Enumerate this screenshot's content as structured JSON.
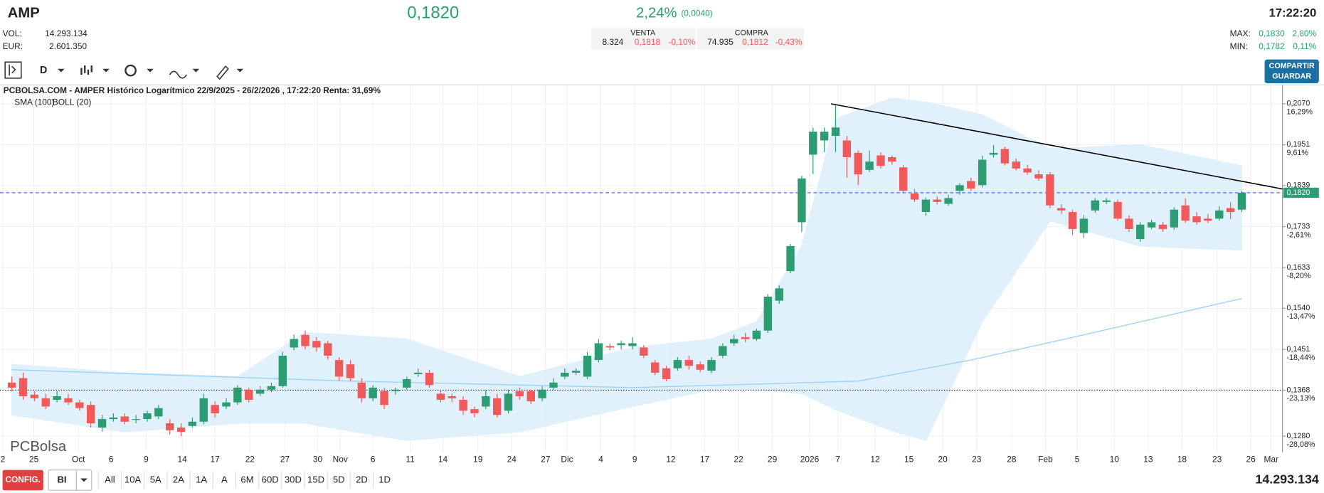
{
  "header": {
    "ticker": "AMP",
    "vol_label": "VOL:",
    "vol": "14.293.134",
    "eur_label": "EUR:",
    "eur": "2.601.350",
    "price": "0,1820",
    "change_pct": "2,24%",
    "change_abs": "(0,0040)",
    "sell_label": "VENTA",
    "sell_qty": "8.324",
    "sell_price": "0,1818",
    "sell_pct": "-0,10%",
    "buy_label": "COMPRA",
    "buy_qty": "74.935",
    "buy_price": "0,1812",
    "buy_pct": "-0,43%",
    "time": "17:22:20",
    "max_label": "MAX:",
    "max": "0,1830",
    "max_pct": "2,80%",
    "min_label": "MIN:",
    "min": "0,1782",
    "min_pct": "0,11%"
  },
  "toolbar": {
    "period": "D",
    "share": "COMPARTIR",
    "save": "GUARDAR"
  },
  "chart_data": {
    "type": "candlestick",
    "title": "PCBOLSA.COM - AMPER Histórico Logarítmico 22/9/2025 - 26/2/2026 , 17:22:20 Renta: 31,69%",
    "watermark": "PCBolsa",
    "log_scale": true,
    "grid": true,
    "up_color": "#2e9c72",
    "down_color": "#f05a5a",
    "xlim": [
      -1.05,
      112.6
    ],
    "ylim": [
      0.1263,
      0.2096
    ],
    "xticks": [
      {
        "value": -0.8,
        "label": "2"
      },
      {
        "value": 1.95,
        "label": "25"
      },
      {
        "value": 5.9,
        "label": "Oct"
      },
      {
        "value": 8.8,
        "label": "6"
      },
      {
        "value": 11.9,
        "label": "9"
      },
      {
        "value": 15.1,
        "label": "14"
      },
      {
        "value": 18.0,
        "label": "17"
      },
      {
        "value": 21.1,
        "label": "22"
      },
      {
        "value": 24.2,
        "label": "27"
      },
      {
        "value": 27.1,
        "label": "30"
      },
      {
        "value": 29.1,
        "label": "Nov"
      },
      {
        "value": 32.0,
        "label": "6"
      },
      {
        "value": 35.3,
        "label": "11"
      },
      {
        "value": 38.2,
        "label": "14"
      },
      {
        "value": 41.3,
        "label": "19"
      },
      {
        "value": 44.3,
        "label": "24"
      },
      {
        "value": 47.3,
        "label": "27"
      },
      {
        "value": 49.2,
        "label": "Dic"
      },
      {
        "value": 52.2,
        "label": "4"
      },
      {
        "value": 55.2,
        "label": "9"
      },
      {
        "value": 58.4,
        "label": "12"
      },
      {
        "value": 61.4,
        "label": "17"
      },
      {
        "value": 64.4,
        "label": "22"
      },
      {
        "value": 67.4,
        "label": "29"
      },
      {
        "value": 70.7,
        "label": "2026"
      },
      {
        "value": 73.2,
        "label": "7"
      },
      {
        "value": 76.5,
        "label": "12"
      },
      {
        "value": 79.5,
        "label": "15"
      },
      {
        "value": 82.5,
        "label": "20"
      },
      {
        "value": 85.5,
        "label": "23"
      },
      {
        "value": 88.6,
        "label": "28"
      },
      {
        "value": 91.6,
        "label": "Feb"
      },
      {
        "value": 94.4,
        "label": "5"
      },
      {
        "value": 97.7,
        "label": "10"
      },
      {
        "value": 100.7,
        "label": "13"
      },
      {
        "value": 103.7,
        "label": "18"
      },
      {
        "value": 106.8,
        "label": "23"
      },
      {
        "value": 109.8,
        "label": "26"
      },
      {
        "value": 111.6,
        "label": "Mar"
      }
    ],
    "yticks": [
      {
        "value": 0.207,
        "label": "0,2070"
      },
      {
        "value": 0.1951,
        "label": "0,1951"
      },
      {
        "value": 0.1839,
        "label": "0,1839"
      },
      {
        "value": 0.1733,
        "label": "0,1733"
      },
      {
        "value": 0.1633,
        "label": "0,1633"
      },
      {
        "value": 0.154,
        "label": "0,1540"
      },
      {
        "value": 0.1451,
        "label": "0,1451"
      },
      {
        "value": 0.1368,
        "label": "0,1368"
      },
      {
        "value": 0.128,
        "label": "0,1280"
      }
    ],
    "ytick_changes": [
      "16,29%",
      "9,61%",
      null,
      "-2,61%",
      "-8,20%",
      "-13,47%",
      "-18,44%",
      "-23,13%",
      "-28,08%"
    ],
    "open": [
      0.1383,
      0.1392,
      0.1359,
      0.1352,
      0.1349,
      0.1352,
      0.1344,
      0.1339,
      0.1296,
      0.1312,
      0.1317,
      0.1312,
      0.1312,
      0.1317,
      0.1304,
      0.1296,
      0.1299,
      0.1307,
      0.1339,
      0.1336,
      0.1344,
      0.1369,
      0.1361,
      0.1369,
      0.1376,
      0.1455,
      0.1482,
      0.1469,
      0.1464,
      0.1429,
      0.142,
      0.1383,
      0.1352,
      0.1366,
      0.1366,
      0.1373,
      0.14,
      0.1403,
      0.1361,
      0.1356,
      0.1349,
      0.1331,
      0.1336,
      0.1352,
      0.1328,
      0.1366,
      0.1366,
      0.1352,
      0.1373,
      0.1395,
      0.1403,
      0.1395,
      0.1429,
      0.1458,
      0.146,
      0.1458,
      0.1455,
      0.1424,
      0.1412,
      0.1412,
      0.1429,
      0.142,
      0.1407,
      0.1438,
      0.1464,
      0.1477,
      0.1473,
      0.1491,
      0.1557,
      0.1625,
      0.1744,
      0.1923,
      0.1963,
      0.1976,
      0.1963,
      0.1928,
      0.1881,
      0.1921,
      0.1916,
      0.1888,
      0.1818,
      0.177,
      0.1802,
      0.1791,
      0.1825,
      0.1851,
      0.184,
      0.1923,
      0.1939,
      0.1904,
      0.1885,
      0.1869,
      0.1869,
      0.178,
      0.177,
      0.1717,
      0.1774,
      0.1796,
      0.1796,
      0.1753,
      0.1702,
      0.1731,
      0.1738,
      0.1731,
      0.1787,
      0.1759,
      0.1753,
      0.1753,
      0.178,
      0.1776
    ],
    "close": [
      0.1373,
      0.1356,
      0.1352,
      0.1336,
      0.1356,
      0.1344,
      0.1333,
      0.1304,
      0.1312,
      0.1315,
      0.1307,
      0.1312,
      0.1323,
      0.1333,
      0.1291,
      0.1288,
      0.1307,
      0.1352,
      0.1323,
      0.1344,
      0.1373,
      0.1349,
      0.1369,
      0.1376,
      0.1438,
      0.1473,
      0.1458,
      0.1455,
      0.1438,
      0.1395,
      0.1392,
      0.1352,
      0.1373,
      0.1339,
      0.1369,
      0.139,
      0.1403,
      0.1378,
      0.1349,
      0.1352,
      0.1328,
      0.1323,
      0.1356,
      0.132,
      0.1361,
      0.1356,
      0.1346,
      0.1369,
      0.1383,
      0.1403,
      0.1407,
      0.1438,
      0.1464,
      0.1455,
      0.1464,
      0.1464,
      0.1438,
      0.1403,
      0.139,
      0.1429,
      0.1417,
      0.1409,
      0.1429,
      0.1458,
      0.1473,
      0.1473,
      0.1491,
      0.1566,
      0.1585,
      0.1685,
      0.1858,
      0.1988,
      0.1988,
      0.2,
      0.1916,
      0.1869,
      0.1904,
      0.1892,
      0.1904,
      0.1825,
      0.1802,
      0.1802,
      0.1796,
      0.1806,
      0.184,
      0.1831,
      0.1909,
      0.1928,
      0.1899,
      0.1885,
      0.1874,
      0.1858,
      0.1787,
      0.1774,
      0.1727,
      0.1753,
      0.18,
      0.18,
      0.1753,
      0.1727,
      0.1738,
      0.1744,
      0.1727,
      0.1776,
      0.1748,
      0.1744,
      0.1748,
      0.1774,
      0.177,
      0.182
    ],
    "high": [
      0.1395,
      0.1403,
      0.1366,
      0.1361,
      0.1366,
      0.1361,
      0.1349,
      0.1346,
      0.132,
      0.1323,
      0.1323,
      0.132,
      0.1328,
      0.1339,
      0.1312,
      0.1304,
      0.1315,
      0.1361,
      0.1346,
      0.1352,
      0.1378,
      0.1373,
      0.1376,
      0.1383,
      0.1446,
      0.1482,
      0.1491,
      0.1477,
      0.1469,
      0.1435,
      0.1429,
      0.1392,
      0.1378,
      0.1373,
      0.1373,
      0.1395,
      0.1412,
      0.1409,
      0.1369,
      0.1361,
      0.1356,
      0.1336,
      0.1369,
      0.1361,
      0.1369,
      0.1373,
      0.1369,
      0.1376,
      0.1392,
      0.1412,
      0.1412,
      0.1446,
      0.1473,
      0.1464,
      0.1469,
      0.1477,
      0.146,
      0.1429,
      0.1417,
      0.1435,
      0.1438,
      0.1426,
      0.1435,
      0.1464,
      0.1482,
      0.1486,
      0.1495,
      0.1572,
      0.1592,
      0.169,
      0.1865,
      0.2,
      0.2,
      0.2065,
      0.1976,
      0.1935,
      0.1935,
      0.193,
      0.1921,
      0.1895,
      0.183,
      0.1808,
      0.181,
      0.1815,
      0.1845,
      0.186,
      0.192,
      0.195,
      0.1945,
      0.1912,
      0.1895,
      0.188,
      0.1875,
      0.179,
      0.1776,
      0.1762,
      0.1806,
      0.1806,
      0.1802,
      0.1762,
      0.1744,
      0.175,
      0.1745,
      0.1782,
      0.1806,
      0.177,
      0.1765,
      0.1785,
      0.1795,
      0.1825
    ],
    "low": [
      0.1366,
      0.1349,
      0.1346,
      0.1331,
      0.1344,
      0.1339,
      0.1328,
      0.1296,
      0.1288,
      0.1307,
      0.1302,
      0.1304,
      0.1307,
      0.1312,
      0.1283,
      0.128,
      0.1296,
      0.1302,
      0.1315,
      0.1331,
      0.1339,
      0.1344,
      0.1356,
      0.1364,
      0.1373,
      0.1449,
      0.1451,
      0.1446,
      0.143,
      0.1386,
      0.1386,
      0.1344,
      0.1346,
      0.1331,
      0.1359,
      0.1369,
      0.1395,
      0.1373,
      0.1344,
      0.1344,
      0.132,
      0.1315,
      0.1331,
      0.1315,
      0.1323,
      0.1349,
      0.1341,
      0.1346,
      0.1369,
      0.139,
      0.1398,
      0.139,
      0.1424,
      0.1449,
      0.1451,
      0.1451,
      0.1433,
      0.1398,
      0.1386,
      0.1407,
      0.1409,
      0.1404,
      0.1402,
      0.1433,
      0.1458,
      0.1466,
      0.1469,
      0.1486,
      0.155,
      0.162,
      0.172,
      0.187,
      0.193,
      0.193,
      0.186,
      0.184,
      0.1875,
      0.1885,
      0.1895,
      0.1818,
      0.1796,
      0.176,
      0.179,
      0.1786,
      0.1815,
      0.1825,
      0.1834,
      0.1915,
      0.1893,
      0.188,
      0.1868,
      0.1852,
      0.178,
      0.1765,
      0.1712,
      0.1705,
      0.1768,
      0.179,
      0.1748,
      0.172,
      0.1695,
      0.1726,
      0.172,
      0.1725,
      0.1742,
      0.1738,
      0.1742,
      0.1748,
      0.1752,
      0.177
    ],
    "sma": {
      "name": "SMA (100)",
      "color": "#9fd3f5",
      "x": [
        0,
        30,
        55,
        75,
        85,
        95,
        109
      ],
      "values": [
        0.1409,
        0.1386,
        0.1373,
        0.1386,
        0.1429,
        0.1482,
        0.1562
      ]
    },
    "bollinger": {
      "name": "BOLL (20)",
      "color": "#c8c8c8",
      "fill": "#dceffb",
      "x": [
        0,
        10,
        20,
        26,
        35,
        45,
        55,
        62,
        66,
        70,
        73,
        78,
        81,
        86,
        92,
        100,
        109
      ],
      "upper": [
        0.142,
        0.1403,
        0.1395,
        0.1487,
        0.1473,
        0.1395,
        0.1455,
        0.1473,
        0.151,
        0.1685,
        0.2025,
        0.2087,
        0.2075,
        0.2037,
        0.1939,
        0.1951,
        0.1892
      ],
      "lower": [
        0.132,
        0.1288,
        0.1304,
        0.1304,
        0.1272,
        0.1288,
        0.1336,
        0.1369,
        0.1369,
        0.1361,
        0.133,
        0.129,
        0.1272,
        0.151,
        0.1748,
        0.1685,
        0.1675
      ]
    },
    "trendline": {
      "color": "#000000",
      "x": [
        72.6,
        112.6
      ],
      "values": [
        0.207,
        0.183
      ]
    },
    "reference_lines": [
      {
        "value": 0.182,
        "label": "0,1820",
        "color": "#3355dd",
        "style": "dashed"
      },
      {
        "value": 0.1368,
        "color": "#000000",
        "style": "dotted"
      }
    ]
  },
  "footer": {
    "config": "CONFIG.",
    "mode": "BI",
    "ranges": [
      "All",
      "10A",
      "5A",
      "2A",
      "1A",
      "A",
      "6M",
      "60D",
      "30D",
      "15D",
      "5D",
      "2D",
      "1D"
    ],
    "volume": "14.293.134"
  }
}
